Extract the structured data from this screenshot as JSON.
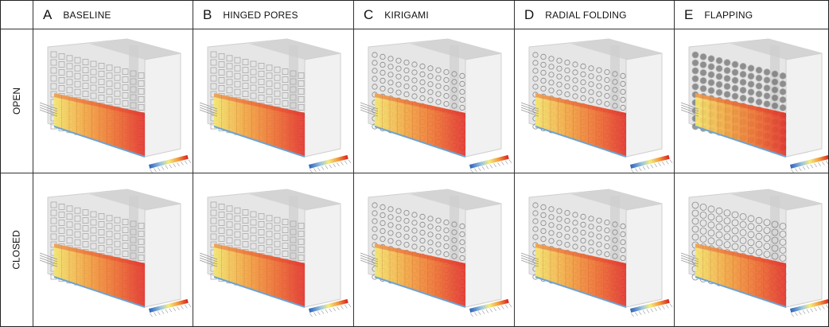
{
  "columns": [
    {
      "letter": "A",
      "title": "BASELINE"
    },
    {
      "letter": "B",
      "title": "HINGED PORES"
    },
    {
      "letter": "C",
      "title": "KIRIGAMI"
    },
    {
      "letter": "D",
      "title": "RADIAL FOLDING"
    },
    {
      "letter": "E",
      "title": "FLAPPING"
    }
  ],
  "rows": [
    "OPEN",
    "CLOSED"
  ]
}
